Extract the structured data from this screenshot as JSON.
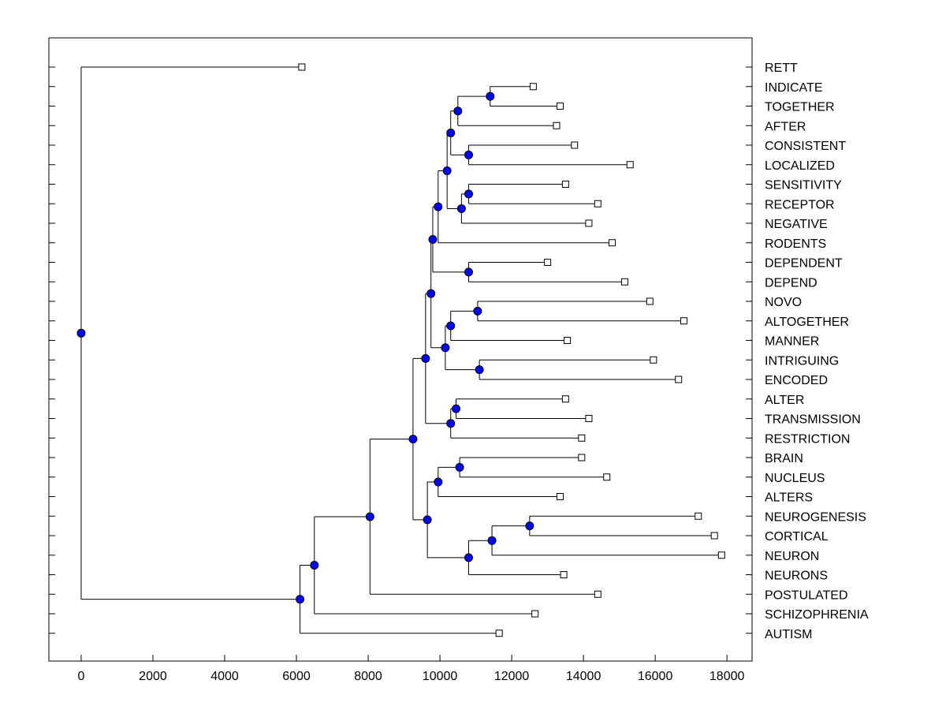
{
  "chart_data": {
    "type": "dendrogram",
    "title": "",
    "xlabel": "",
    "ylabel": "",
    "xlim": [
      -900,
      18700
    ],
    "xticks": [
      0,
      2000,
      4000,
      6000,
      8000,
      10000,
      12000,
      14000,
      16000,
      18000
    ],
    "colors": {
      "node": "#0000ff",
      "line": "#000000",
      "leaf_fill": "#ffffff"
    },
    "leaves": [
      {
        "name": "RETT",
        "x": 6150
      },
      {
        "name": "INDICATE",
        "x": 12600
      },
      {
        "name": "TOGETHER",
        "x": 13350
      },
      {
        "name": "AFTER",
        "x": 13250
      },
      {
        "name": "CONSISTENT",
        "x": 13750
      },
      {
        "name": "LOCALIZED",
        "x": 15300
      },
      {
        "name": "SENSITIVITY",
        "x": 13500
      },
      {
        "name": "RECEPTOR",
        "x": 14400
      },
      {
        "name": "NEGATIVE",
        "x": 14150
      },
      {
        "name": "RODENTS",
        "x": 14800
      },
      {
        "name": "DEPENDENT",
        "x": 13000
      },
      {
        "name": "DEPEND",
        "x": 15150
      },
      {
        "name": "NOVO",
        "x": 15850
      },
      {
        "name": "ALTOGETHER",
        "x": 16800
      },
      {
        "name": "MANNER",
        "x": 13550
      },
      {
        "name": "INTRIGUING",
        "x": 15950
      },
      {
        "name": "ENCODED",
        "x": 16650
      },
      {
        "name": "ALTER",
        "x": 13500
      },
      {
        "name": "TRANSMISSION",
        "x": 14150
      },
      {
        "name": "RESTRICTION",
        "x": 13950
      },
      {
        "name": "BRAIN",
        "x": 13950
      },
      {
        "name": "NUCLEUS",
        "x": 14650
      },
      {
        "name": "ALTERS",
        "x": 13350
      },
      {
        "name": "NEUROGENESIS",
        "x": 17200
      },
      {
        "name": "CORTICAL",
        "x": 17650
      },
      {
        "name": "NEURON",
        "x": 17850
      },
      {
        "name": "NEURONS",
        "x": 13450
      },
      {
        "name": "POSTULATED",
        "x": 14400
      },
      {
        "name": "SCHIZOPHRENIA",
        "x": 12650
      },
      {
        "name": "AUTISM",
        "x": 11650
      }
    ],
    "merges": [
      {
        "id": "n1",
        "x": 11400,
        "children": [
          "INDICATE",
          "TOGETHER"
        ]
      },
      {
        "id": "n2",
        "x": 10500,
        "children": [
          "n1",
          "AFTER"
        ]
      },
      {
        "id": "n3",
        "x": 10800,
        "children": [
          "CONSISTENT",
          "LOCALIZED"
        ]
      },
      {
        "id": "n4",
        "x": 10300,
        "children": [
          "n2",
          "n3"
        ]
      },
      {
        "id": "n5",
        "x": 10800,
        "children": [
          "SENSITIVITY",
          "RECEPTOR"
        ]
      },
      {
        "id": "n6",
        "x": 10600,
        "children": [
          "n5",
          "NEGATIVE"
        ]
      },
      {
        "id": "n7",
        "x": 10200,
        "children": [
          "n4",
          "n6"
        ]
      },
      {
        "id": "n8",
        "x": 9950,
        "children": [
          "n7",
          "RODENTS"
        ]
      },
      {
        "id": "n9",
        "x": 10800,
        "children": [
          "DEPENDENT",
          "DEPEND"
        ]
      },
      {
        "id": "n10",
        "x": 9800,
        "children": [
          "n8",
          "n9"
        ]
      },
      {
        "id": "n11",
        "x": 11050,
        "children": [
          "NOVO",
          "ALTOGETHER"
        ]
      },
      {
        "id": "n12",
        "x": 10300,
        "children": [
          "n11",
          "MANNER"
        ]
      },
      {
        "id": "n13",
        "x": 11100,
        "children": [
          "INTRIGUING",
          "ENCODED"
        ]
      },
      {
        "id": "n14",
        "x": 10150,
        "children": [
          "n12",
          "n13"
        ]
      },
      {
        "id": "n15",
        "x": 9750,
        "children": [
          "n10",
          "n14"
        ]
      },
      {
        "id": "n16",
        "x": 10450,
        "children": [
          "ALTER",
          "TRANSMISSION"
        ]
      },
      {
        "id": "n17",
        "x": 10300,
        "children": [
          "n16",
          "RESTRICTION"
        ]
      },
      {
        "id": "n18",
        "x": 9600,
        "children": [
          "n15",
          "n17"
        ]
      },
      {
        "id": "n19",
        "x": 10550,
        "children": [
          "BRAIN",
          "NUCLEUS"
        ]
      },
      {
        "id": "n20",
        "x": 9950,
        "children": [
          "n19",
          "ALTERS"
        ]
      },
      {
        "id": "n21",
        "x": 12500,
        "children": [
          "NEUROGENESIS",
          "CORTICAL"
        ]
      },
      {
        "id": "n22",
        "x": 11450,
        "children": [
          "n21",
          "NEURON"
        ]
      },
      {
        "id": "n23",
        "x": 10800,
        "children": [
          "n22",
          "NEURONS"
        ]
      },
      {
        "id": "n24",
        "x": 9650,
        "children": [
          "n20",
          "n23"
        ]
      },
      {
        "id": "n25",
        "x": 9250,
        "children": [
          "n18",
          "n24"
        ]
      },
      {
        "id": "n26",
        "x": 8050,
        "children": [
          "n25",
          "POSTULATED"
        ]
      },
      {
        "id": "n27",
        "x": 6500,
        "children": [
          "n26",
          "SCHIZOPHRENIA"
        ]
      },
      {
        "id": "n28",
        "x": 6100,
        "children": [
          "n27",
          "AUTISM"
        ]
      },
      {
        "id": "root",
        "x": 0,
        "children": [
          "RETT",
          "n28"
        ]
      }
    ]
  }
}
